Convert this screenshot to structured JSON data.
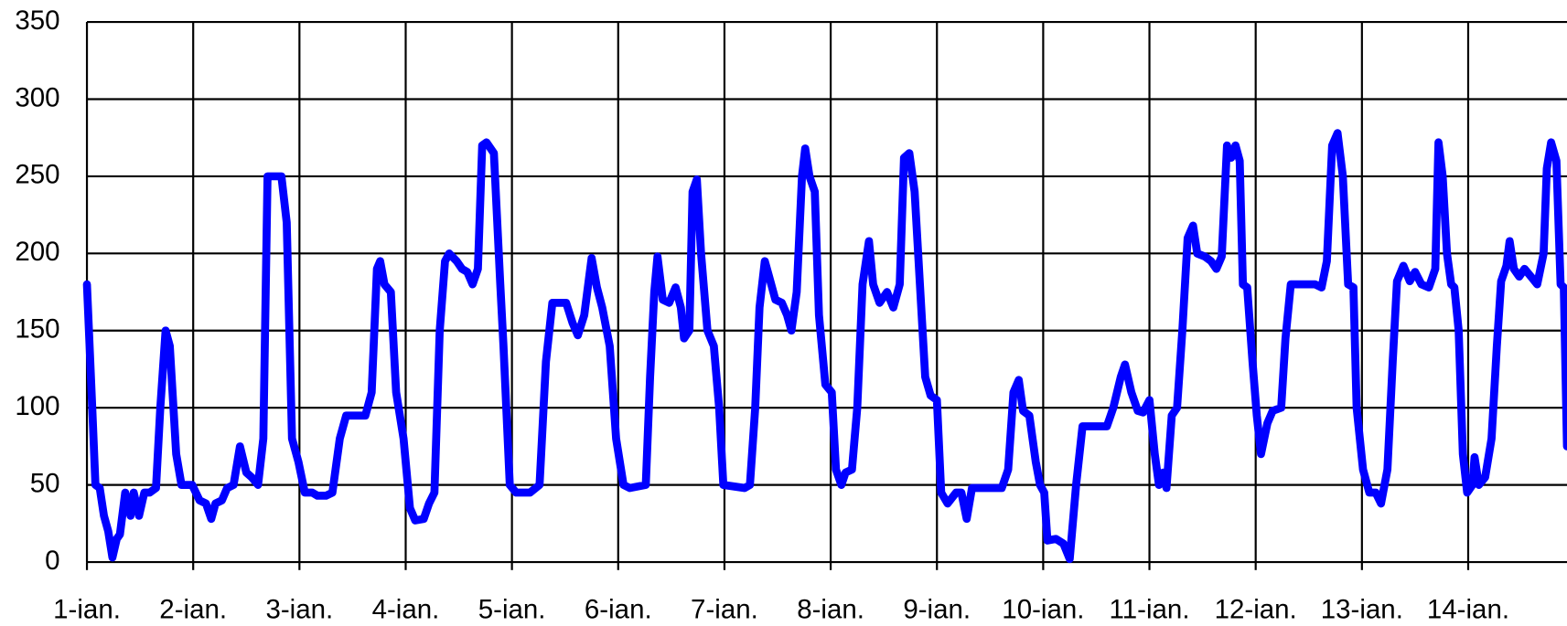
{
  "chart_data": {
    "type": "line",
    "color": "#0000ff",
    "grid": true,
    "xlim": [
      0,
      13.93
    ],
    "ylim": [
      0,
      350
    ],
    "yticks": [
      0,
      50,
      100,
      150,
      200,
      250,
      300,
      350
    ],
    "xticks": [
      {
        "value": 0,
        "label": "1-ian."
      },
      {
        "value": 1,
        "label": "2-ian."
      },
      {
        "value": 2,
        "label": "3-ian."
      },
      {
        "value": 3,
        "label": "4-ian."
      },
      {
        "value": 4,
        "label": "5-ian."
      },
      {
        "value": 5,
        "label": "6-ian."
      },
      {
        "value": 6,
        "label": "7-ian."
      },
      {
        "value": 7,
        "label": "8-ian."
      },
      {
        "value": 8,
        "label": "9-ian."
      },
      {
        "value": 9,
        "label": "10-ian."
      },
      {
        "value": 10,
        "label": "11-ian."
      },
      {
        "value": 11,
        "label": "12-ian."
      },
      {
        "value": 12,
        "label": "13-ian."
      },
      {
        "value": 13,
        "label": "14-ian."
      }
    ],
    "x": [
      0,
      0.05,
      0.08,
      0.12,
      0.16,
      0.2,
      0.24,
      0.28,
      0.31,
      0.36,
      0.41,
      0.44,
      0.49,
      0.54,
      0.59,
      0.65,
      0.69,
      0.74,
      0.78,
      0.84,
      0.89,
      0.99,
      1.06,
      1.12,
      1.17,
      1.21,
      1.27,
      1.32,
      1.38,
      1.44,
      1.5,
      1.55,
      1.61,
      1.66,
      1.7,
      1.77,
      1.83,
      1.88,
      1.93,
      1.99,
      2.05,
      2.12,
      2.17,
      2.25,
      2.31,
      2.38,
      2.44,
      2.62,
      2.68,
      2.73,
      2.76,
      2.8,
      2.86,
      2.91,
      2.98,
      3.04,
      3.09,
      3.17,
      3.22,
      3.27,
      3.32,
      3.37,
      3.41,
      3.48,
      3.53,
      3.58,
      3.63,
      3.68,
      3.72,
      3.76,
      3.83,
      3.89,
      3.92,
      3.98,
      4.04,
      4.17,
      4.26,
      4.32,
      4.38,
      4.45,
      4.51,
      4.57,
      4.62,
      4.68,
      4.75,
      4.8,
      4.85,
      4.92,
      4.98,
      5.05,
      5.11,
      5.26,
      5.3,
      5.34,
      5.37,
      5.42,
      5.48,
      5.54,
      5.59,
      5.62,
      5.67,
      5.7,
      5.74,
      5.78,
      5.84,
      5.9,
      5.95,
      5.99,
      6.19,
      6.24,
      6.29,
      6.33,
      6.38,
      6.42,
      6.48,
      6.54,
      6.59,
      6.63,
      6.68,
      6.73,
      6.76,
      6.8,
      6.85,
      6.89,
      6.95,
      7.01,
      7.05,
      7.1,
      7.14,
      7.2,
      7.25,
      7.3,
      7.36,
      7.4,
      7.46,
      7.53,
      7.59,
      7.65,
      7.69,
      7.74,
      7.79,
      7.84,
      7.89,
      7.94,
      8.0,
      8.04,
      8.1,
      8.18,
      8.23,
      8.28,
      8.33,
      8.45,
      8.61,
      8.67,
      8.72,
      8.77,
      8.81,
      8.87,
      8.93,
      8.97,
      9.01,
      9.04,
      9.12,
      9.19,
      9.25,
      9.31,
      9.37,
      9.44,
      9.6,
      9.66,
      9.73,
      9.77,
      9.83,
      9.89,
      9.94,
      10.0,
      10.05,
      10.09,
      10.13,
      10.16,
      10.21,
      10.26,
      10.31,
      10.36,
      10.41,
      10.45,
      10.52,
      10.58,
      10.63,
      10.68,
      10.73,
      10.77,
      10.81,
      10.85,
      10.88,
      10.92,
      10.97,
      11.01,
      11.05,
      11.11,
      11.16,
      11.24,
      11.28,
      11.33,
      11.41,
      11.56,
      11.62,
      11.67,
      11.72,
      11.77,
      11.82,
      11.87,
      11.92,
      11.95,
      12.01,
      12.07,
      12.13,
      12.18,
      12.24,
      12.29,
      12.33,
      12.39,
      12.45,
      12.5,
      12.56,
      12.63,
      12.69,
      12.72,
      12.76,
      12.8,
      12.84,
      12.87,
      12.91,
      12.95,
      12.99,
      13.04,
      13.06,
      13.1,
      13.16,
      13.22,
      13.27,
      13.31,
      13.36,
      13.39,
      13.43,
      13.48,
      13.53,
      13.59,
      13.65,
      13.71,
      13.74,
      13.78,
      13.83,
      13.87,
      13.9,
      13.93
    ],
    "values": [
      180,
      100,
      50,
      48,
      30,
      20,
      3,
      15,
      18,
      45,
      30,
      45,
      30,
      45,
      45,
      48,
      100,
      150,
      140,
      70,
      50,
      50,
      40,
      38,
      28,
      38,
      40,
      48,
      50,
      75,
      58,
      55,
      50,
      80,
      250,
      250,
      250,
      220,
      80,
      65,
      45,
      45,
      43,
      43,
      45,
      80,
      95,
      95,
      110,
      190,
      195,
      180,
      175,
      110,
      80,
      35,
      27,
      28,
      38,
      45,
      150,
      195,
      200,
      195,
      190,
      188,
      180,
      190,
      270,
      272,
      265,
      180,
      140,
      50,
      45,
      45,
      50,
      130,
      168,
      168,
      168,
      155,
      147,
      160,
      197,
      178,
      165,
      140,
      80,
      50,
      48,
      50,
      120,
      175,
      198,
      170,
      168,
      178,
      165,
      145,
      150,
      240,
      248,
      200,
      150,
      140,
      100,
      50,
      48,
      50,
      100,
      165,
      195,
      185,
      170,
      168,
      160,
      150,
      175,
      250,
      268,
      250,
      240,
      160,
      115,
      110,
      60,
      50,
      58,
      60,
      100,
      180,
      208,
      180,
      168,
      175,
      165,
      180,
      262,
      265,
      240,
      180,
      120,
      108,
      105,
      45,
      38,
      45,
      45,
      28,
      48,
      48,
      48,
      60,
      110,
      118,
      98,
      95,
      65,
      50,
      45,
      14,
      15,
      12,
      2,
      50,
      88,
      88,
      88,
      100,
      120,
      128,
      110,
      98,
      97,
      105,
      70,
      50,
      58,
      48,
      95,
      100,
      150,
      210,
      218,
      200,
      198,
      195,
      190,
      198,
      270,
      262,
      270,
      260,
      180,
      178,
      130,
      95,
      70,
      90,
      98,
      100,
      145,
      180,
      180,
      180,
      178,
      195,
      270,
      278,
      250,
      180,
      178,
      100,
      60,
      45,
      45,
      38,
      60,
      130,
      182,
      192,
      182,
      188,
      180,
      178,
      190,
      272,
      250,
      200,
      180,
      178,
      150,
      70,
      45,
      50,
      68,
      50,
      55,
      80,
      140,
      182,
      192,
      208,
      190,
      185,
      190,
      185,
      180,
      200,
      255,
      272,
      260,
      180,
      178,
      75
    ]
  }
}
